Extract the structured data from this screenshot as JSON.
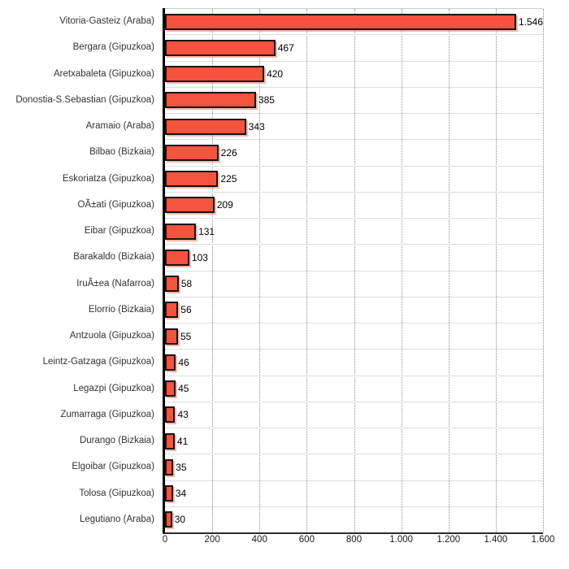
{
  "chart_data": {
    "type": "bar",
    "orientation": "horizontal",
    "title": "",
    "xlabel": "",
    "ylabel": "",
    "legend_position": "none",
    "grid": "vertical-dotted",
    "xlim": [
      0,
      1600
    ],
    "x_ticks": [
      {
        "value": 0,
        "label": "0"
      },
      {
        "value": 200,
        "label": "200"
      },
      {
        "value": 400,
        "label": "400"
      },
      {
        "value": 600,
        "label": "600"
      },
      {
        "value": 800,
        "label": "800"
      },
      {
        "value": 1000,
        "label": "1.000"
      },
      {
        "value": 1200,
        "label": "1.200"
      },
      {
        "value": 1400,
        "label": "1.400"
      },
      {
        "value": 1600,
        "label": "1.600"
      }
    ],
    "bars": [
      {
        "category": "Vitoria-Gasteiz (Araba)",
        "value": 1546,
        "value_label": "1.546"
      },
      {
        "category": "Bergara (Gipuzkoa)",
        "value": 467,
        "value_label": "467"
      },
      {
        "category": "Aretxabaleta (Gipuzkoa)",
        "value": 420,
        "value_label": "420"
      },
      {
        "category": "Donostia-S.Sebastian (Gipuzkoa)",
        "value": 385,
        "value_label": "385"
      },
      {
        "category": "Aramaio (Araba)",
        "value": 343,
        "value_label": "343"
      },
      {
        "category": "Bilbao (Bizkaia)",
        "value": 226,
        "value_label": "226"
      },
      {
        "category": "Eskoriatza (Gipuzkoa)",
        "value": 225,
        "value_label": "225"
      },
      {
        "category": "OÃ±ati (Gipuzkoa)",
        "value": 209,
        "value_label": "209"
      },
      {
        "category": "Eibar (Gipuzkoa)",
        "value": 131,
        "value_label": "131"
      },
      {
        "category": "Barakaldo (Bizkaia)",
        "value": 103,
        "value_label": "103"
      },
      {
        "category": "IruÃ±ea (Nafarroa)",
        "value": 58,
        "value_label": "58"
      },
      {
        "category": "Elorrio (Bizkaia)",
        "value": 56,
        "value_label": "56"
      },
      {
        "category": "Antzuola (Gipuzkoa)",
        "value": 55,
        "value_label": "55"
      },
      {
        "category": "Leintz-Gatzaga (Gipuzkoa)",
        "value": 46,
        "value_label": "46"
      },
      {
        "category": "Legazpi (Gipuzkoa)",
        "value": 45,
        "value_label": "45"
      },
      {
        "category": "Zumarraga (Gipuzkoa)",
        "value": 43,
        "value_label": "43"
      },
      {
        "category": "Durango (Bizkaia)",
        "value": 41,
        "value_label": "41"
      },
      {
        "category": "Elgoibar (Gipuzkoa)",
        "value": 35,
        "value_label": "35"
      },
      {
        "category": "Tolosa (Gipuzkoa)",
        "value": 34,
        "value_label": "34"
      },
      {
        "category": "Legutiano (Araba)",
        "value": 30,
        "value_label": "30"
      }
    ],
    "colors": {
      "bar_fill": "#f5533d",
      "bar_border": "#141414",
      "bar_shadow": "rgba(245,92,64,0.45)",
      "row_separator": "#dddddd",
      "gridline": "#8f8f8f",
      "axis": "#000000",
      "text": "#333333"
    }
  }
}
